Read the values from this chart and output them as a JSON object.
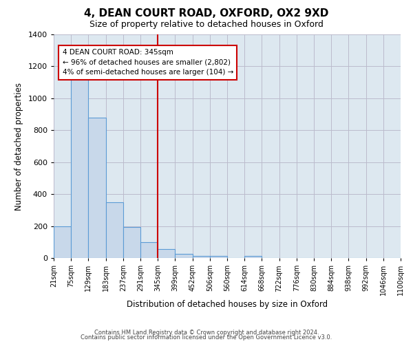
{
  "title": "4, DEAN COURT ROAD, OXFORD, OX2 9XD",
  "subtitle": "Size of property relative to detached houses in Oxford",
  "xlabel": "Distribution of detached houses by size in Oxford",
  "ylabel": "Number of detached properties",
  "bar_color": "#c8d8ea",
  "bar_edge_color": "#5b9bd5",
  "plot_bg_color": "#dde8f0",
  "bin_labels": [
    "21sqm",
    "75sqm",
    "129sqm",
    "183sqm",
    "237sqm",
    "291sqm",
    "345sqm",
    "399sqm",
    "452sqm",
    "506sqm",
    "560sqm",
    "614sqm",
    "668sqm",
    "722sqm",
    "776sqm",
    "830sqm",
    "884sqm",
    "938sqm",
    "992sqm",
    "1046sqm",
    "1100sqm"
  ],
  "bar_heights": [
    200,
    1120,
    880,
    350,
    195,
    100,
    55,
    25,
    15,
    15,
    0,
    15,
    0,
    0,
    0,
    0,
    0,
    0,
    0,
    0
  ],
  "ylim": [
    0,
    1400
  ],
  "yticks": [
    0,
    200,
    400,
    600,
    800,
    1000,
    1200,
    1400
  ],
  "vline_x": 6,
  "vline_color": "#cc0000",
  "annotation_title": "4 DEAN COURT ROAD: 345sqm",
  "annotation_line1": "← 96% of detached houses are smaller (2,802)",
  "annotation_line2": "4% of semi-detached houses are larger (104) →",
  "annotation_box_color": "#ffffff",
  "annotation_box_edge_color": "#cc0000",
  "footer_line1": "Contains HM Land Registry data © Crown copyright and database right 2024.",
  "footer_line2": "Contains public sector information licensed under the Open Government Licence v3.0.",
  "bg_color": "#ffffff",
  "grid_color": "#bbbbcc"
}
